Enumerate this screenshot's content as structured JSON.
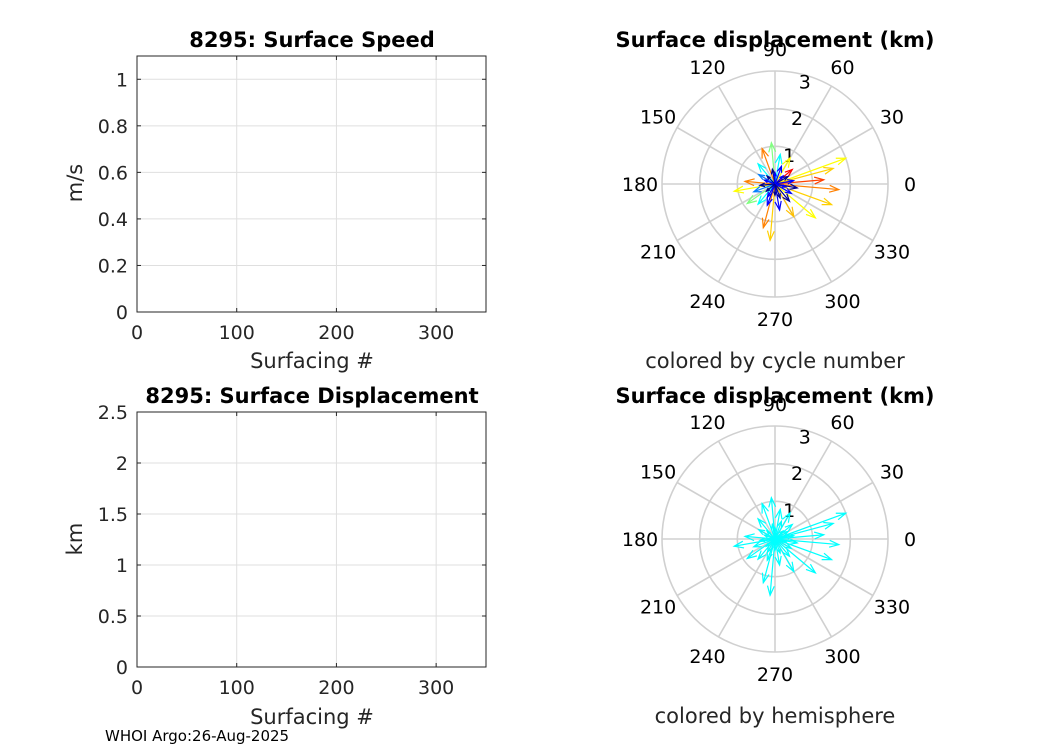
{
  "footer": "WHOI Argo:26-Aug-2025",
  "chart_data": [
    {
      "id": "speed",
      "type": "line",
      "title": "8295: Surface Speed",
      "xlabel": "Surfacing #",
      "ylabel": "m/s",
      "xlim": [
        0,
        350
      ],
      "ylim": [
        0,
        1.1
      ],
      "xticks": [
        0,
        100,
        200,
        300
      ],
      "xtick_labels": [
        "0",
        "100",
        "200",
        "300"
      ],
      "yticks": [
        0,
        0.2,
        0.4,
        0.6,
        0.8,
        1
      ],
      "ytick_labels": [
        "0",
        "0.2",
        "0.4",
        "0.6",
        "0.8",
        "1"
      ],
      "grid": true,
      "series": []
    },
    {
      "id": "disp",
      "type": "line",
      "title": "8295: Surface Displacement",
      "xlabel": "Surfacing #",
      "ylabel": "km",
      "xlim": [
        0,
        350
      ],
      "ylim": [
        0,
        2.5
      ],
      "xticks": [
        0,
        100,
        200,
        300
      ],
      "xtick_labels": [
        "0",
        "100",
        "200",
        "300"
      ],
      "yticks": [
        0,
        0.5,
        1,
        1.5,
        2,
        2.5
      ],
      "ytick_labels": [
        "0",
        "0.5",
        "1",
        "1.5",
        "2",
        "2.5"
      ],
      "grid": true,
      "series": []
    },
    {
      "id": "polar_cycle",
      "type": "polar-compass",
      "title": "Surface displacement (km)",
      "xlabel": "colored by cycle number",
      "rlim": [
        0,
        3
      ],
      "r_ticks": [
        1,
        2,
        3
      ],
      "r_tick_labels": [
        "1",
        "2",
        "3"
      ],
      "angle_ticks": [
        0,
        30,
        60,
        90,
        120,
        150,
        180,
        210,
        240,
        270,
        300,
        330
      ],
      "angle_tick_labels": [
        "0",
        "30",
        "60",
        "90",
        "120",
        "150",
        "180",
        "210",
        "240",
        "270",
        "300",
        "330"
      ],
      "colormap": [
        "#00008f",
        "#0000ff",
        "#0080ff",
        "#00ffff",
        "#80ff80",
        "#ffff00",
        "#ff8000",
        "#ff0000",
        "#800000"
      ],
      "vectors": [
        {
          "angle": 20,
          "r": 2.0,
          "color": "#ffff00"
        },
        {
          "angle": 15,
          "r": 1.6,
          "color": "#ffd000"
        },
        {
          "angle": 355,
          "r": 1.7,
          "color": "#ff8000"
        },
        {
          "angle": 5,
          "r": 1.3,
          "color": "#ff4000"
        },
        {
          "angle": 340,
          "r": 1.6,
          "color": "#ffd000"
        },
        {
          "angle": 320,
          "r": 1.4,
          "color": "#ffff00"
        },
        {
          "angle": 300,
          "r": 1.0,
          "color": "#ffc000"
        },
        {
          "angle": 265,
          "r": 1.5,
          "color": "#ffd000"
        },
        {
          "angle": 255,
          "r": 1.2,
          "color": "#ff8000"
        },
        {
          "angle": 190,
          "r": 1.1,
          "color": "#ffff00"
        },
        {
          "angle": 175,
          "r": 0.8,
          "color": "#ff8000"
        },
        {
          "angle": 215,
          "r": 0.9,
          "color": "#80ff80"
        },
        {
          "angle": 110,
          "r": 1.0,
          "color": "#ff8000"
        },
        {
          "angle": 95,
          "r": 1.1,
          "color": "#80ff80"
        },
        {
          "angle": 80,
          "r": 0.8,
          "color": "#00ffff"
        },
        {
          "angle": 60,
          "r": 0.8,
          "color": "#ffff00"
        },
        {
          "angle": 40,
          "r": 0.6,
          "color": "#ff0000"
        },
        {
          "angle": 130,
          "r": 0.7,
          "color": "#00ffff"
        },
        {
          "angle": 150,
          "r": 0.5,
          "color": "#0080ff"
        },
        {
          "angle": 200,
          "r": 0.6,
          "color": "#0080ff"
        },
        {
          "angle": 230,
          "r": 0.7,
          "color": "#00ffff"
        },
        {
          "angle": 250,
          "r": 0.6,
          "color": "#0000ff"
        },
        {
          "angle": 280,
          "r": 0.7,
          "color": "#0000ff"
        },
        {
          "angle": 310,
          "r": 0.6,
          "color": "#00008f"
        },
        {
          "angle": 330,
          "r": 0.5,
          "color": "#0000ff"
        },
        {
          "angle": 350,
          "r": 0.6,
          "color": "#00008f"
        },
        {
          "angle": 10,
          "r": 0.5,
          "color": "#0000ff"
        },
        {
          "angle": 30,
          "r": 0.4,
          "color": "#00008f"
        },
        {
          "angle": 70,
          "r": 0.5,
          "color": "#0000ff"
        },
        {
          "angle": 100,
          "r": 0.4,
          "color": "#00008f"
        },
        {
          "angle": 160,
          "r": 0.3,
          "color": "#0000ff"
        },
        {
          "angle": 185,
          "r": 0.4,
          "color": "#00008f"
        },
        {
          "angle": 240,
          "r": 0.4,
          "color": "#0000ff"
        },
        {
          "angle": 290,
          "r": 0.4,
          "color": "#00008f"
        },
        {
          "angle": 345,
          "r": 0.3,
          "color": "#0000ff"
        },
        {
          "angle": 135,
          "r": 0.3,
          "color": "#00008f"
        },
        {
          "angle": 45,
          "r": 0.3,
          "color": "#0000ff"
        },
        {
          "angle": 270,
          "r": 0.3,
          "color": "#00008f"
        },
        {
          "angle": 90,
          "r": 0.3,
          "color": "#0000ff"
        },
        {
          "angle": 220,
          "r": 0.3,
          "color": "#00008f"
        }
      ]
    },
    {
      "id": "polar_hemi",
      "type": "polar-compass",
      "title": "Surface displacement (km)",
      "xlabel": "colored by hemisphere",
      "rlim": [
        0,
        3
      ],
      "r_ticks": [
        1,
        2,
        3
      ],
      "r_tick_labels": [
        "1",
        "2",
        "3"
      ],
      "angle_ticks": [
        0,
        30,
        60,
        90,
        120,
        150,
        180,
        210,
        240,
        270,
        300,
        330
      ],
      "angle_tick_labels": [
        "0",
        "30",
        "60",
        "90",
        "120",
        "150",
        "180",
        "210",
        "240",
        "270",
        "300",
        "330"
      ],
      "hemisphere_color": "#00ffff",
      "vectors": [
        {
          "angle": 20,
          "r": 2.0
        },
        {
          "angle": 15,
          "r": 1.6
        },
        {
          "angle": 355,
          "r": 1.7
        },
        {
          "angle": 5,
          "r": 1.3
        },
        {
          "angle": 340,
          "r": 1.6
        },
        {
          "angle": 320,
          "r": 1.4
        },
        {
          "angle": 300,
          "r": 1.0
        },
        {
          "angle": 265,
          "r": 1.5
        },
        {
          "angle": 255,
          "r": 1.2
        },
        {
          "angle": 190,
          "r": 1.1
        },
        {
          "angle": 175,
          "r": 0.8
        },
        {
          "angle": 215,
          "r": 0.9
        },
        {
          "angle": 110,
          "r": 1.0
        },
        {
          "angle": 95,
          "r": 1.1
        },
        {
          "angle": 80,
          "r": 0.8
        },
        {
          "angle": 60,
          "r": 0.8
        },
        {
          "angle": 40,
          "r": 0.6
        },
        {
          "angle": 130,
          "r": 0.7
        },
        {
          "angle": 150,
          "r": 0.5
        },
        {
          "angle": 200,
          "r": 0.6
        },
        {
          "angle": 230,
          "r": 0.7
        },
        {
          "angle": 250,
          "r": 0.6
        },
        {
          "angle": 280,
          "r": 0.7
        },
        {
          "angle": 310,
          "r": 0.6
        },
        {
          "angle": 330,
          "r": 0.5
        },
        {
          "angle": 350,
          "r": 0.6
        },
        {
          "angle": 10,
          "r": 0.5
        },
        {
          "angle": 30,
          "r": 0.4
        },
        {
          "angle": 70,
          "r": 0.5
        },
        {
          "angle": 100,
          "r": 0.4
        },
        {
          "angle": 160,
          "r": 0.3
        },
        {
          "angle": 185,
          "r": 0.4
        },
        {
          "angle": 240,
          "r": 0.4
        },
        {
          "angle": 290,
          "r": 0.4
        },
        {
          "angle": 345,
          "r": 0.3
        },
        {
          "angle": 135,
          "r": 0.3
        },
        {
          "angle": 45,
          "r": 0.3
        },
        {
          "angle": 270,
          "r": 0.3
        },
        {
          "angle": 90,
          "r": 0.3
        },
        {
          "angle": 220,
          "r": 0.3
        }
      ]
    }
  ]
}
